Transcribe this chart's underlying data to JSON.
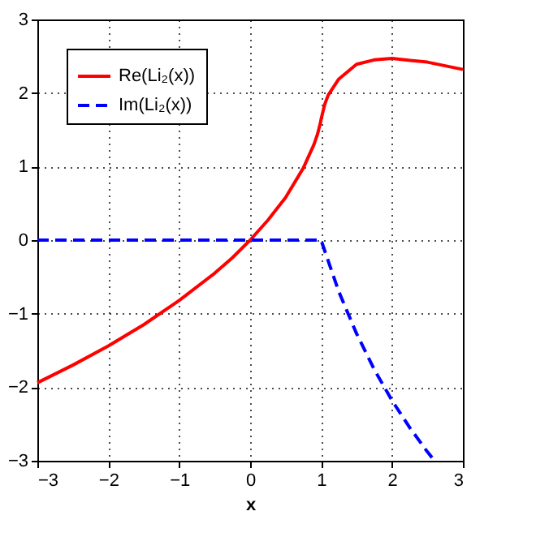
{
  "chart_data": {
    "type": "line",
    "xlabel": "x",
    "series": [
      {
        "name": "Re(Li₂(x))",
        "color": "#ff0000",
        "line_style": "solid",
        "x": [
          -3,
          -2.5,
          -2,
          -1.5,
          -1,
          -0.5,
          -0.25,
          0,
          0.25,
          0.5,
          0.75,
          0.9,
          0.95,
          0.99,
          1,
          1.05,
          1.1,
          1.25,
          1.5,
          1.75,
          2,
          2.5,
          3
        ],
        "values": [
          -1.94,
          -1.7,
          -1.44,
          -1.15,
          -0.82,
          -0.45,
          -0.24,
          0,
          0.27,
          0.58,
          0.98,
          1.3,
          1.44,
          1.59,
          1.64,
          1.84,
          1.97,
          2.19,
          2.39,
          2.45,
          2.47,
          2.42,
          2.32
        ]
      },
      {
        "name": "Im(Li₂(x))",
        "color": "#0000ff",
        "line_style": "dashed",
        "x": [
          -3,
          0,
          1,
          1.25,
          1.5,
          1.75,
          2,
          2.25,
          2.5,
          2.6
        ],
        "values": [
          0,
          0,
          0,
          -0.7,
          -1.27,
          -1.76,
          -2.18,
          -2.55,
          -2.88,
          -3
        ]
      }
    ],
    "xlim": [
      -3,
      3
    ],
    "ylim": [
      -3,
      3
    ],
    "xticks": [
      -3,
      -2,
      -1,
      0,
      1,
      2,
      3
    ],
    "yticks": [
      -3,
      -2,
      -1,
      0,
      1,
      2,
      3
    ],
    "grid": true,
    "legend": "top left"
  }
}
